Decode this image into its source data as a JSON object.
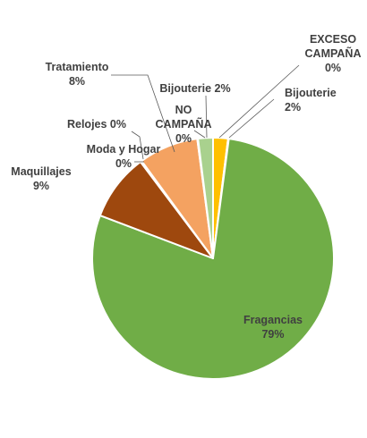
{
  "chart_data": {
    "type": "pie",
    "title": "",
    "slices": [
      {
        "label": "Bijouterie",
        "label_lines": [
          "Bijouterie",
          "2%"
        ],
        "value": 2,
        "percent_text": "2%",
        "color": "#ffc000"
      },
      {
        "label": "EXCESO CAMPAÑA",
        "label_lines": [
          "EXCESO",
          "CAMPAÑA",
          "0%"
        ],
        "value": 0,
        "percent_text": "0%",
        "color": "#ffe699"
      },
      {
        "label": "Fragancias",
        "label_lines": [
          "Fragancias",
          "79%"
        ],
        "value": 79,
        "percent_text": "79%",
        "color": "#70ad47"
      },
      {
        "label": "Maquillajes",
        "label_lines": [
          "Maquillajes",
          "9%"
        ],
        "value": 9,
        "percent_text": "9%",
        "color": "#9e480e"
      },
      {
        "label": "Moda y Hogar",
        "label_lines": [
          "Moda y Hogar",
          "0%"
        ],
        "value": 0,
        "percent_text": "0%",
        "color": "#c55a11"
      },
      {
        "label": "Relojes",
        "label_lines": [
          "Relojes 0%"
        ],
        "value": 0,
        "percent_text": "0%",
        "color": "#843c0c"
      },
      {
        "label": "Tratamiento",
        "label_lines": [
          "Tratamiento",
          "8%"
        ],
        "value": 8,
        "percent_text": "8%",
        "color": "#f4a261"
      },
      {
        "label": "NO CAMPAÑA",
        "label_lines": [
          "NO",
          "CAMPAÑA",
          "0%"
        ],
        "value": 0,
        "percent_text": "0%",
        "color": "#c5e0b4"
      },
      {
        "label": "Bijouterie",
        "label_lines": [
          "Bijouterie 2%"
        ],
        "value": 2,
        "percent_text": "2%",
        "color": "#a9d18e"
      }
    ],
    "legend": "none",
    "data_labels": "outside-with-leader-lines"
  }
}
